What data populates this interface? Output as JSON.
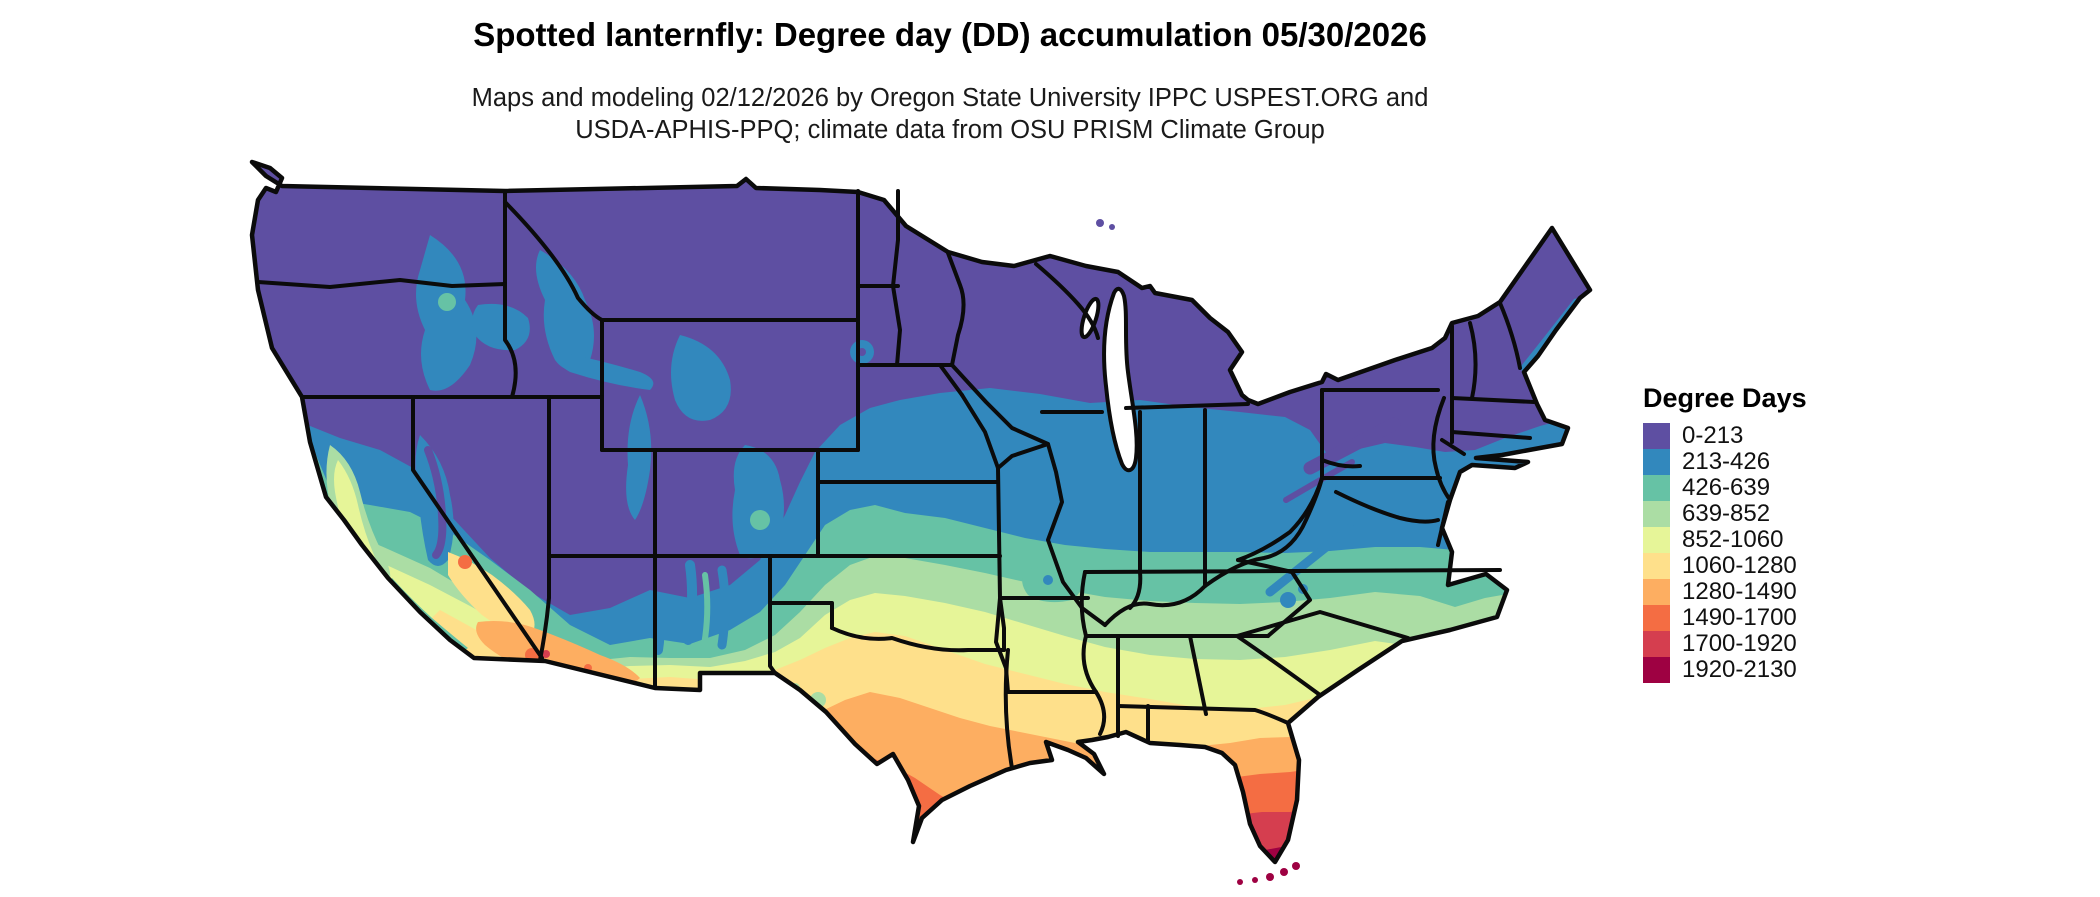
{
  "header": {
    "title": "Spotted lanternfly: Degree day (DD) accumulation 05/30/2026",
    "subtitle_line1": "Maps and modeling 02/12/2026 by Oregon State University IPPC USPEST.ORG and",
    "subtitle_line2": "USDA-APHIS-PPQ; climate data from OSU PRISM Climate Group"
  },
  "legend": {
    "title": "Degree Days",
    "items": [
      {
        "label": "0-213",
        "color": "#5e4fa2"
      },
      {
        "label": "213-426",
        "color": "#3288bd"
      },
      {
        "label": "426-639",
        "color": "#66c2a5"
      },
      {
        "label": "639-852",
        "color": "#abdda4"
      },
      {
        "label": "852-1060",
        "color": "#e6f598"
      },
      {
        "label": "1060-1280",
        "color": "#fee08b"
      },
      {
        "label": "1280-1490",
        "color": "#fdae61"
      },
      {
        "label": "1490-1700",
        "color": "#f46d43"
      },
      {
        "label": "1700-1920",
        "color": "#d53e4f"
      },
      {
        "label": "1920-2130",
        "color": "#9e0142"
      }
    ]
  },
  "map": {
    "kind": "degree-day accumulation choropleth",
    "area": "contiguous United States",
    "units": "degree days"
  }
}
